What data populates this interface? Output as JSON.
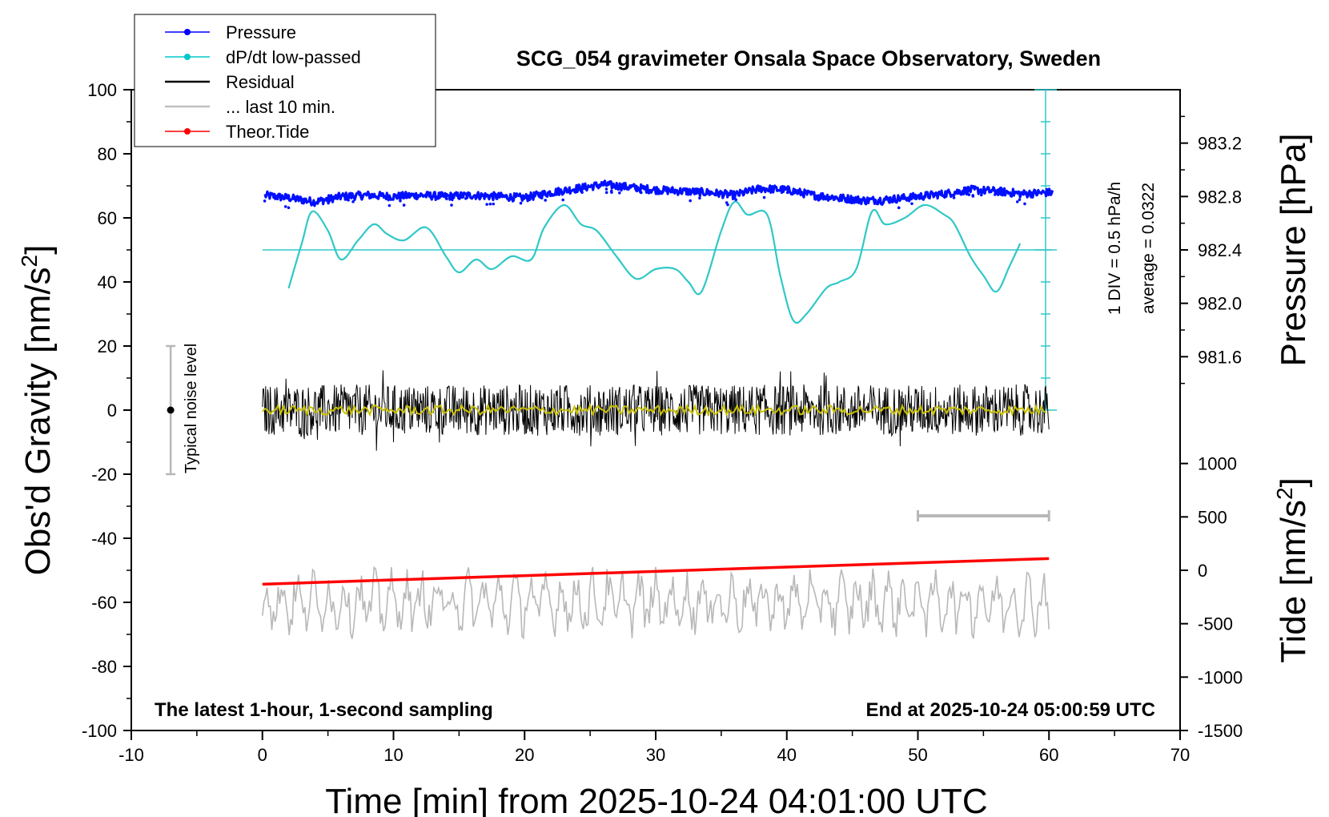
{
  "chart_data": {
    "type": "line",
    "title": "SCG_054 gravimeter Onsala Space Observatory, Sweden",
    "xlabel": "Time [min] from 2025-10-24 04:01:00 UTC",
    "ylabel_left": "Obs'd Gravity [nm/s",
    "ylabel_left_sup": "2",
    "ylabel_left_end": "]",
    "ylabel_right_pressure": "Pressure [hPa]",
    "ylabel_right_tide": "Tide [nm/s",
    "ylabel_right_tide_sup": "2",
    "ylabel_right_tide_end": "]",
    "xlim": [
      -10,
      70
    ],
    "ylim": [
      -100,
      100
    ],
    "x_ticks": [
      "-10",
      "0",
      "10",
      "20",
      "30",
      "40",
      "50",
      "60",
      "70"
    ],
    "y_ticks": [
      "100",
      "80",
      "60",
      "40",
      "20",
      "0",
      "-20",
      "-40",
      "-60",
      "-80",
      "-100"
    ],
    "pressure_ticks": [
      "983.2",
      "982.8",
      "982.4",
      "982.0",
      "981.6"
    ],
    "pressure_tick_values": [
      983.2,
      982.8,
      982.4,
      982.0,
      981.6
    ],
    "pressure_range": [
      981.2,
      983.6
    ],
    "tide_ticks": [
      "1000",
      "500",
      "0",
      "-500",
      "-1000",
      "-1500"
    ],
    "tide_tick_values": [
      1000,
      500,
      0,
      -500,
      -1000,
      -1500
    ],
    "tide_range": [
      -1500,
      1500
    ],
    "dpdt_label_1": "1 DIV = 0.5 hPa/h",
    "dpdt_label_2": "average = 0.0322",
    "noise_label": "Typical noise level",
    "noise_range": [
      -20,
      20
    ],
    "footer_left": "The latest 1-hour, 1-second sampling",
    "footer_right": "End at 2025-10-24 05:00:59 UTC",
    "legend": [
      {
        "label": "Pressure",
        "color": "#0000ff",
        "marker": true
      },
      {
        "label": "dP/dt low-passed",
        "color": "#00c8c8",
        "marker": true
      },
      {
        "label": "Residual",
        "color": "#000000",
        "marker": false
      },
      {
        "label": "... last 10 min.",
        "color": "#c0c0c0",
        "marker": false
      },
      {
        "label": "Theor.Tide",
        "color": "#ff0000",
        "marker": true
      }
    ],
    "series": [
      {
        "name": "Pressure",
        "unit": "hPa",
        "x": [
          0,
          2,
          4,
          6,
          8,
          10,
          12,
          14,
          16,
          18,
          20,
          22,
          24,
          26,
          28,
          30,
          32,
          34,
          36,
          38,
          40,
          42,
          44,
          46,
          48,
          50,
          52,
          54,
          56,
          58,
          60
        ],
        "values": [
          982.81,
          982.79,
          982.76,
          982.8,
          982.81,
          982.8,
          982.81,
          982.8,
          982.81,
          982.8,
          982.79,
          982.83,
          982.86,
          982.89,
          982.87,
          982.85,
          982.84,
          982.83,
          982.81,
          982.86,
          982.85,
          982.81,
          982.79,
          982.77,
          982.78,
          982.8,
          982.82,
          982.85,
          982.84,
          982.82,
          982.83
        ]
      },
      {
        "name": "dP/dt low-passed",
        "unit": "nm/s2 plot scale",
        "x": [
          2,
          3,
          3.8,
          5,
          6,
          7.3,
          8.5,
          9.5,
          10.8,
          12.5,
          14,
          15,
          16.3,
          17.5,
          19,
          20.5,
          21.5,
          23,
          24.3,
          25.5,
          27,
          28.5,
          30,
          31.5,
          32.5,
          33.5,
          35,
          36,
          37,
          38.5,
          39.5,
          40.5,
          41.5,
          43,
          44,
          45.3,
          46.5,
          47.5,
          49,
          50.5,
          52,
          52.8,
          54,
          55,
          56,
          57,
          57.8
        ],
        "values": [
          38,
          52,
          62,
          56,
          47,
          53,
          58,
          55,
          53,
          57,
          48,
          43,
          47,
          44,
          48,
          47,
          57,
          64,
          58,
          56,
          48,
          41,
          44,
          44,
          40,
          37,
          56,
          65,
          61,
          61,
          42,
          28,
          30,
          38,
          40,
          44,
          62,
          58,
          60,
          64,
          61,
          58,
          48,
          42,
          37,
          45,
          52
        ]
      },
      {
        "name": "Residual",
        "x": [
          0,
          60
        ],
        "values": [
          0,
          0
        ],
        "noise_amplitude": 8
      },
      {
        "name": "... last 10 min.",
        "x": [
          0,
          60
        ],
        "values": [
          -60,
          -60
        ],
        "noise_amplitude": 10
      },
      {
        "name": "Theor.Tide",
        "unit": "nm/s2",
        "x": [
          0,
          60
        ],
        "values": [
          -130,
          110
        ]
      }
    ],
    "dpdt_baseline": 50,
    "last10_bar": [
      50,
      60
    ]
  }
}
